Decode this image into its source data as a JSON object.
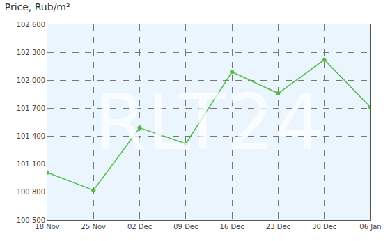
{
  "chart_data": {
    "type": "line",
    "title": "Price, Rub/m²",
    "categories": [
      "18 Nov",
      "25 Nov",
      "02 Dec",
      "09 Dec",
      "16 Dec",
      "23 Dec",
      "30 Dec",
      "06 Jan"
    ],
    "values": [
      101010,
      100820,
      101490,
      101320,
      102090,
      101860,
      102220,
      101710
    ],
    "color": "#55bb44",
    "marker": "circle",
    "line_style": "solid",
    "ylim": [
      100500,
      102600
    ],
    "yticks": [
      {
        "value": 100500,
        "label": "100 500"
      },
      {
        "value": 100800,
        "label": "100 800"
      },
      {
        "value": 101100,
        "label": "101 100"
      },
      {
        "value": 101400,
        "label": "101 400"
      },
      {
        "value": 101700,
        "label": "101 700"
      },
      {
        "value": 102000,
        "label": "102 000"
      },
      {
        "value": 102300,
        "label": "102 300"
      },
      {
        "value": 102600,
        "label": "102 600"
      }
    ],
    "grid": true,
    "annotations": [
      "RLT24"
    ]
  }
}
